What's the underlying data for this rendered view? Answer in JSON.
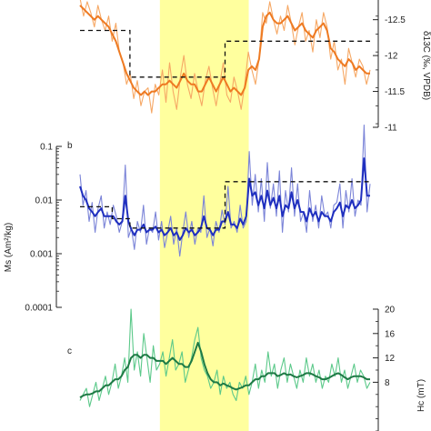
{
  "chart_data": [
    {
      "type": "line",
      "panel": "a",
      "panel_label": "",
      "ylabel": "δ13C (‰, VPDB)",
      "yaxis_side": "right",
      "ylim": [
        -12.8,
        -11.0
      ],
      "y_inverted": true,
      "yticks": [
        -12.5,
        -12,
        -11.5,
        -11
      ],
      "ytick_labels": [
        "-12.5",
        "-12",
        "-11.5",
        "-11"
      ],
      "colors": {
        "raw": "#f6a865",
        "smooth": "#ee7a22",
        "mean": "#111111"
      },
      "highlight_band": {
        "x": [
          0.15,
          0.45
        ],
        "color": "#ffff9e"
      },
      "series": [
        {
          "role": "raw",
          "values": [
            -12.8,
            -12.55,
            -12.75,
            -12.6,
            -12.4,
            -12.7,
            -12.5,
            -12.35,
            -12.55,
            -12.2,
            -12.45,
            -12.05,
            -11.9,
            -11.6,
            -11.75,
            -11.4,
            -11.65,
            -11.3,
            -11.5,
            -11.55,
            -11.2,
            -11.6,
            -11.45,
            -11.8,
            -11.35,
            -11.9,
            -11.5,
            -11.25,
            -11.7,
            -12.0,
            -11.6,
            -11.4,
            -11.75,
            -11.5,
            -11.3,
            -11.65,
            -11.85,
            -11.55,
            -11.3,
            -11.6,
            -11.9,
            -11.45,
            -11.35,
            -11.7,
            -11.5,
            -11.25,
            -11.6,
            -12.05,
            -11.8,
            -11.6,
            -11.95,
            -12.6,
            -12.45,
            -12.75,
            -12.5,
            -12.3,
            -12.55,
            -12.35,
            -12.7,
            -12.45,
            -12.15,
            -12.4,
            -12.6,
            -12.2,
            -12.35,
            -12.05,
            -12.5,
            -12.25,
            -12.6,
            -12.4,
            -11.95,
            -12.2,
            -11.8,
            -11.95,
            -11.6,
            -12.1,
            -11.9,
            -11.7,
            -11.95,
            -11.85,
            -11.6,
            -11.8
          ]
        },
        {
          "role": "smooth",
          "values": [
            -12.7,
            -12.65,
            -12.6,
            -12.55,
            -12.5,
            -12.55,
            -12.5,
            -12.45,
            -12.4,
            -12.3,
            -12.2,
            -12.05,
            -11.9,
            -11.75,
            -11.65,
            -11.55,
            -11.5,
            -11.45,
            -11.5,
            -11.45,
            -11.5,
            -11.5,
            -11.55,
            -11.6,
            -11.6,
            -11.65,
            -11.6,
            -11.55,
            -11.65,
            -11.75,
            -11.65,
            -11.6,
            -11.6,
            -11.5,
            -11.5,
            -11.6,
            -11.7,
            -11.6,
            -11.5,
            -11.6,
            -11.7,
            -11.6,
            -11.5,
            -11.55,
            -11.5,
            -11.45,
            -11.55,
            -11.8,
            -11.85,
            -11.8,
            -11.95,
            -12.4,
            -12.55,
            -12.6,
            -12.5,
            -12.45,
            -12.45,
            -12.5,
            -12.55,
            -12.45,
            -12.35,
            -12.4,
            -12.45,
            -12.35,
            -12.3,
            -12.25,
            -12.35,
            -12.4,
            -12.45,
            -12.35,
            -12.1,
            -12.05,
            -11.95,
            -11.9,
            -11.85,
            -11.95,
            -11.9,
            -11.8,
            -11.85,
            -11.8,
            -11.75,
            -11.75
          ]
        }
      ],
      "step_means": [
        {
          "x": [
            0.0,
            0.155
          ],
          "value": -12.35
        },
        {
          "x": [
            0.155,
            0.45
          ],
          "value": -11.7
        },
        {
          "x": [
            0.45,
            0.9
          ],
          "value": -12.2
        }
      ]
    },
    {
      "type": "line",
      "panel": "b",
      "panel_label": "b",
      "ylabel": "Ms (Am²/kg)",
      "yaxis_side": "left",
      "yscale": "log",
      "ylim": [
        0.0001,
        0.1
      ],
      "yticks": [
        0.0001,
        0.001,
        0.01,
        0.1
      ],
      "ytick_labels": [
        "0.0001",
        "0.001",
        "0.01",
        "0.1"
      ],
      "colors": {
        "raw": "#7b84d8",
        "smooth": "#1f2fbf",
        "mean": "#111111"
      },
      "highlight_band": {
        "x": [
          0.15,
          0.45
        ],
        "color": "#ffff9e"
      },
      "series": [
        {
          "role": "raw",
          "values": [
            0.03,
            0.008,
            0.015,
            0.004,
            0.009,
            0.0025,
            0.007,
            0.012,
            0.003,
            0.006,
            0.0035,
            0.008,
            0.005,
            0.0025,
            0.004,
            0.045,
            0.002,
            0.003,
            0.0012,
            0.004,
            0.0025,
            0.008,
            0.0015,
            0.003,
            0.0025,
            0.006,
            0.0018,
            0.004,
            0.0013,
            0.0025,
            0.005,
            0.0015,
            0.003,
            0.0009,
            0.0025,
            0.006,
            0.002,
            0.004,
            0.0015,
            0.003,
            0.0025,
            0.012,
            0.002,
            0.003,
            0.0014,
            0.004,
            0.0025,
            0.0065,
            0.0035,
            0.018,
            0.003,
            0.004,
            0.0025,
            0.008,
            0.003,
            0.004,
            0.08,
            0.008,
            0.03,
            0.006,
            0.025,
            0.004,
            0.05,
            0.007,
            0.02,
            0.005,
            0.035,
            0.0025,
            0.015,
            0.006,
            0.04,
            0.005,
            0.02,
            0.004,
            0.006,
            0.0025,
            0.015,
            0.004,
            0.008,
            0.003,
            0.012,
            0.005,
            0.006,
            0.003,
            0.008,
            0.009,
            0.02,
            0.003,
            0.015,
            0.006,
            0.025,
            0.005,
            0.01,
            0.008,
            0.25,
            0.006,
            0.02
          ]
        },
        {
          "role": "smooth",
          "values": [
            0.018,
            0.012,
            0.01,
            0.007,
            0.006,
            0.005,
            0.006,
            0.007,
            0.005,
            0.005,
            0.005,
            0.005,
            0.004,
            0.0035,
            0.004,
            0.012,
            0.004,
            0.0028,
            0.0022,
            0.0028,
            0.0028,
            0.0035,
            0.0025,
            0.0028,
            0.0028,
            0.0032,
            0.0025,
            0.0028,
            0.0022,
            0.0025,
            0.003,
            0.0022,
            0.0025,
            0.0018,
            0.0022,
            0.003,
            0.0025,
            0.0028,
            0.0022,
            0.0025,
            0.003,
            0.005,
            0.003,
            0.0028,
            0.0022,
            0.0028,
            0.0028,
            0.004,
            0.004,
            0.006,
            0.0035,
            0.0035,
            0.003,
            0.0045,
            0.0035,
            0.005,
            0.025,
            0.012,
            0.014,
            0.008,
            0.012,
            0.007,
            0.015,
            0.008,
            0.011,
            0.007,
            0.012,
            0.005,
            0.008,
            0.007,
            0.014,
            0.007,
            0.01,
            0.006,
            0.006,
            0.004,
            0.007,
            0.005,
            0.006,
            0.004,
            0.006,
            0.005,
            0.005,
            0.004,
            0.006,
            0.007,
            0.009,
            0.005,
            0.008,
            0.007,
            0.01,
            0.007,
            0.008,
            0.01,
            0.06,
            0.012,
            0.012
          ]
        }
      ],
      "step_means": [
        {
          "x": [
            0.0,
            0.1
          ],
          "value": 0.0075
        },
        {
          "x": [
            0.1,
            0.155
          ],
          "value": 0.0045
        },
        {
          "x": [
            0.155,
            0.45
          ],
          "value": 0.003
        },
        {
          "x": [
            0.45,
            0.9
          ],
          "value": 0.022
        }
      ]
    },
    {
      "type": "line",
      "panel": "c",
      "panel_label": "c",
      "ylabel": "Hc (mT)",
      "yaxis_side": "right",
      "ylim": [
        0,
        20
      ],
      "yticks": [
        8,
        12,
        16,
        20
      ],
      "ytick_labels": [
        "8",
        "12",
        "16",
        "20"
      ],
      "colors": {
        "raw": "#5cc98a",
        "smooth": "#1e7a45"
      },
      "highlight_band": {
        "x": [
          0.15,
          0.45
        ],
        "color": "#ffff9e"
      },
      "series": [
        {
          "role": "raw",
          "values": [
            5,
            6,
            7,
            4,
            6,
            8,
            5,
            7,
            9,
            6,
            8,
            11,
            7,
            9,
            12,
            8,
            20,
            10,
            13,
            9,
            16,
            12,
            8,
            14,
            10,
            11,
            13,
            9,
            12,
            15,
            10,
            11,
            13,
            8,
            10,
            12,
            15,
            17,
            12,
            10,
            9,
            7,
            8,
            10,
            6,
            9,
            7,
            8,
            6,
            5,
            8,
            7,
            9,
            6,
            8,
            11,
            7,
            10,
            8,
            13,
            9,
            11,
            7,
            10,
            12,
            8,
            11,
            9,
            7,
            10,
            8,
            12,
            9,
            11,
            8,
            10,
            7,
            9,
            8,
            11,
            9,
            12,
            8,
            10,
            7,
            9,
            11,
            8,
            10,
            9,
            7,
            8
          ]
        },
        {
          "role": "smooth",
          "values": [
            5.5,
            5.8,
            6,
            6,
            6.2,
            6.5,
            6.5,
            7,
            7.5,
            7.5,
            8,
            8.5,
            8.5,
            9,
            10,
            10.5,
            12,
            12.5,
            12.5,
            12,
            12.5,
            12.5,
            12,
            12,
            11.5,
            11.5,
            11.5,
            11,
            11.5,
            12,
            11.5,
            11,
            11,
            10.5,
            10.5,
            11.5,
            13,
            14.5,
            13,
            11,
            9.5,
            8.5,
            8,
            8,
            7.5,
            7.8,
            7.5,
            7.3,
            7,
            6.8,
            7,
            7.2,
            7.5,
            7.5,
            8,
            8.5,
            8.5,
            9,
            9,
            9.5,
            9.5,
            9.5,
            9,
            9.2,
            9.5,
            9.2,
            9.3,
            9,
            8.8,
            9,
            9.2,
            9.5,
            9.5,
            9.3,
            9,
            8.8,
            8.5,
            8.5,
            8.7,
            9,
            9.3,
            9.5,
            9.2,
            8.8,
            8.5,
            8.8,
            9,
            9,
            9,
            8.8,
            8.5,
            8.5
          ]
        }
      ]
    }
  ]
}
